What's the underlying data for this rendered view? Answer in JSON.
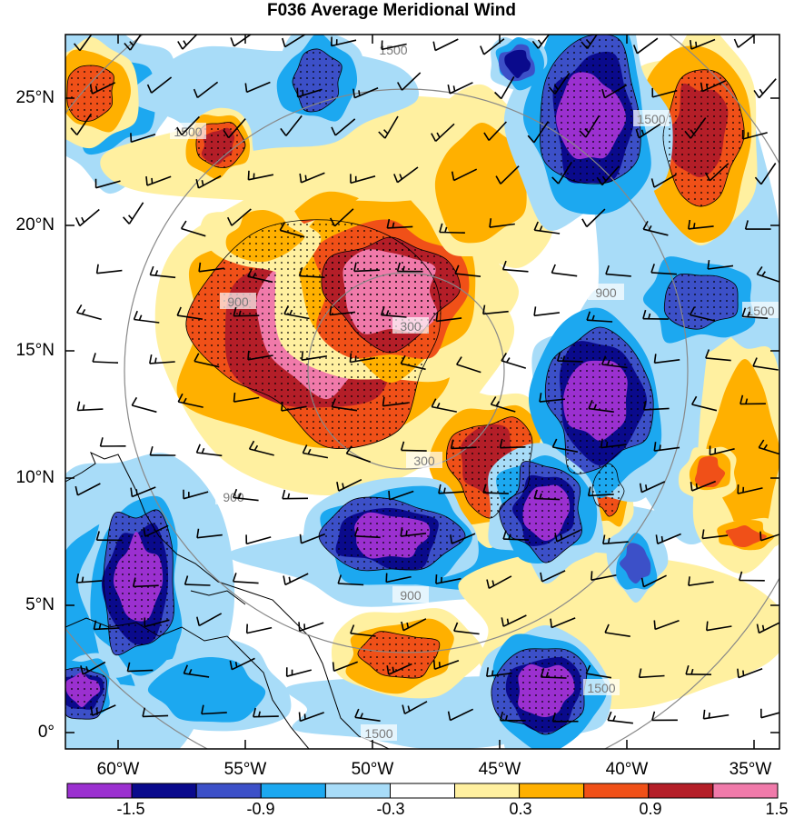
{
  "title": "F036 Average Meridional Wind",
  "lat_labels": [
    "25°N",
    "20°N",
    "15°N",
    "10°N",
    "5°N",
    "0°"
  ],
  "lon_labels": [
    "60°W",
    "55°W",
    "50°W",
    "45°W",
    "40°W",
    "35°W"
  ],
  "colorbar": {
    "labels": [
      "-1.5",
      "-0.9",
      "-0.3",
      "0.3",
      "0.9",
      "1.5"
    ],
    "colors": [
      "#9b30d0",
      "#0a0a8c",
      "#3c50c8",
      "#1ca8f0",
      "#a8dcf8",
      "#ffffff",
      "#fff0a0",
      "#ffb000",
      "#f05018",
      "#b41e28",
      "#f07aaa"
    ]
  },
  "range_rings": [
    {
      "label": "300"
    },
    {
      "label": "900"
    },
    {
      "label": "1500"
    }
  ],
  "fields": {
    "colors": {
      "pos1": "#fff0a0",
      "pos2": "#ffb000",
      "pos3": "#f05018",
      "pos4": "#b41e28",
      "pos5": "#f07aaa",
      "neg1": "#a8dcf8",
      "neg2": "#1ca8f0",
      "neg3": "#3c50c8",
      "neg4": "#0a0a8c",
      "neg5": "#9b30d0"
    }
  }
}
